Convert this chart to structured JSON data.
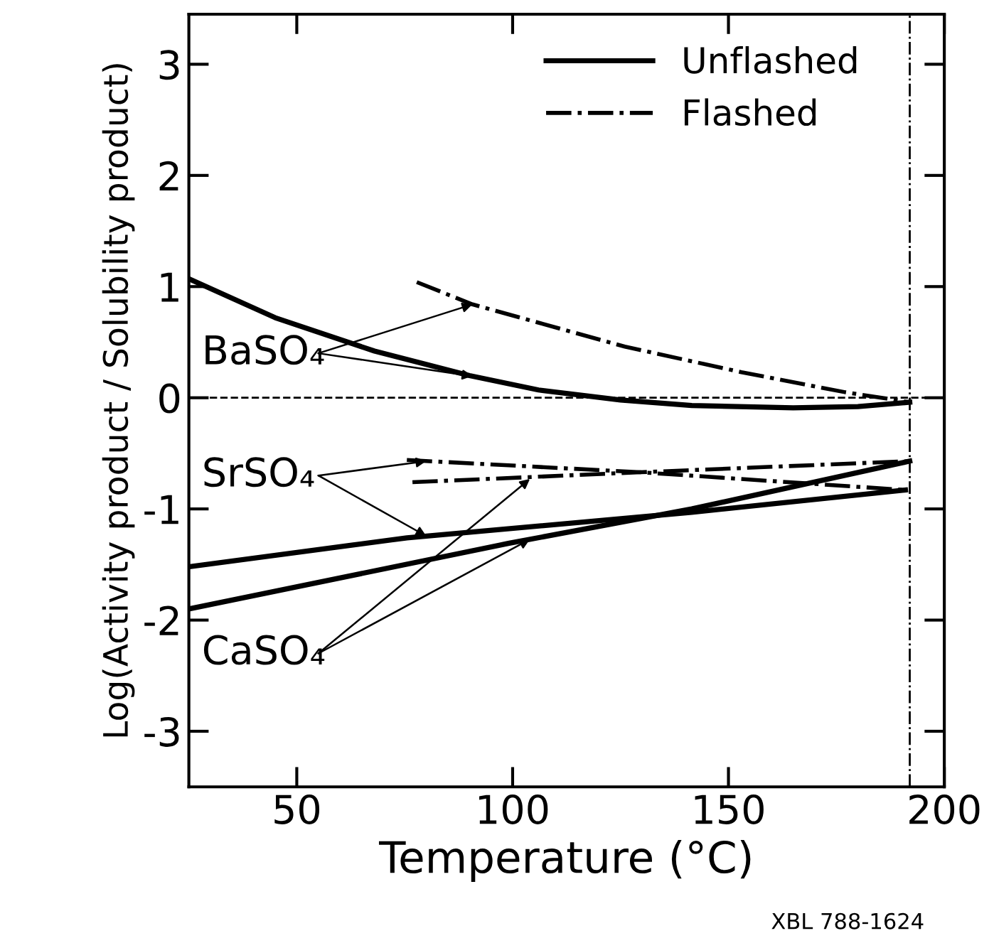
{
  "chart_data": {
    "type": "line",
    "xlabel": "Temperature (°C)",
    "ylabel": "Log(Activity product / Solubility product)",
    "xlim": [
      25,
      200
    ],
    "ylim": [
      -3.5,
      3.45
    ],
    "xticks": [
      50,
      100,
      150,
      200
    ],
    "yticks": [
      -3,
      -2,
      -1,
      0,
      1,
      2,
      3
    ],
    "grid": false,
    "legend": "top right",
    "marker": "none",
    "series": [
      {
        "name": "Unflashed",
        "color": "#000000",
        "line_style": "solid",
        "x": [
          25,
          45,
          68,
          90,
          106,
          125,
          141.5,
          165,
          180,
          192
        ],
        "values": [
          1.07,
          0.72,
          0.42,
          0.2,
          0.07,
          -0.02,
          -0.07,
          -0.09,
          -0.08,
          -0.04
        ]
      },
      {
        "name": "Flashed",
        "color": "#000000",
        "line_style": "dashdot",
        "x": [
          77.8,
          90.7,
          126,
          153,
          177,
          192
        ],
        "values": [
          1.04,
          0.84,
          0.46,
          0.23,
          0.05,
          -0.04
        ]
      },
      {
        "color": "#000000",
        "line_style": "solid",
        "x": [
          25,
          75.5,
          141.5,
          191
        ],
        "values": [
          -1.52,
          -1.26,
          -1.03,
          -0.83
        ]
      },
      {
        "color": "#000000",
        "line_style": "dashdot",
        "x": [
          75.5,
          129.6,
          191
        ],
        "values": [
          -0.56,
          -0.67,
          -0.83
        ]
      },
      {
        "color": "#000000",
        "line_style": "solid",
        "x": [
          25,
          99,
          141.5,
          192
        ],
        "values": [
          -1.9,
          -1.31,
          -1.0,
          -0.57
        ]
      },
      {
        "color": "#000000",
        "line_style": "dashdot",
        "x": [
          76.8,
          129.6,
          192
        ],
        "values": [
          -0.76,
          -0.67,
          -0.57
        ]
      }
    ],
    "ref_lines": [
      {
        "axis": "y",
        "value": 0,
        "line_style": "dashed",
        "color": "#000000"
      },
      {
        "axis": "x",
        "value": 192,
        "line_style": "dashdot",
        "color": "#000000"
      }
    ],
    "annotations": [
      {
        "text": "BaSO₄",
        "x": 90.7,
        "y": 0.84
      },
      {
        "text": "SrSO₄",
        "x": 80,
        "y": -0.57
      },
      {
        "text": "CaSO₄",
        "x": 104,
        "y": -0.73
      },
      "XBL 788-1624"
    ]
  }
}
